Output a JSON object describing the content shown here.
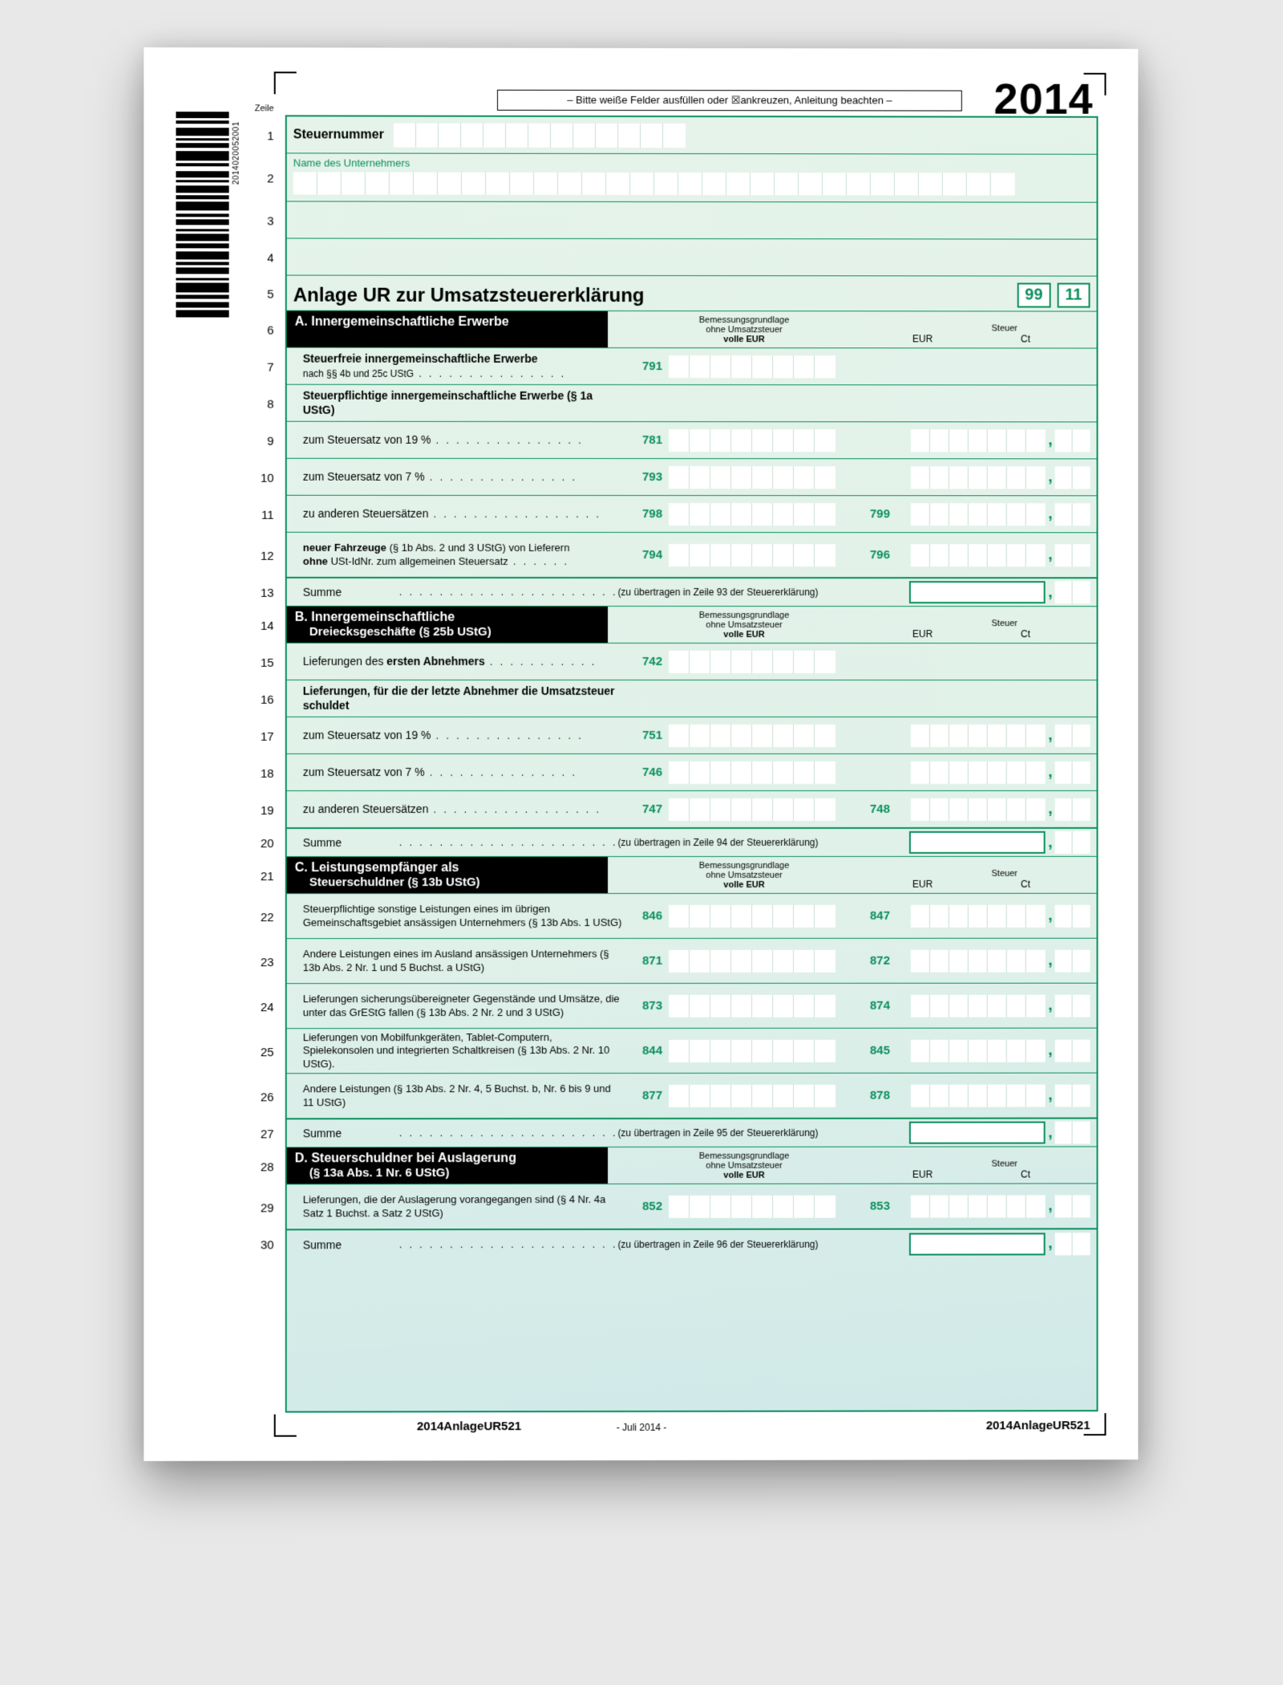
{
  "instruction_bar": "– Bitte weiße Felder ausfüllen oder ☒ankreuzen, Anleitung beachten –",
  "year": "2014",
  "barcode_label": "2014020052001",
  "zeile_header": "Zeile",
  "line_numbers": [
    "1",
    "2",
    "3",
    "4",
    "5",
    "6",
    "7",
    "8",
    "9",
    "10",
    "11",
    "12",
    "13",
    "14",
    "15",
    "16",
    "17",
    "18",
    "19",
    "20",
    "21",
    "22",
    "23",
    "24",
    "25",
    "26",
    "27",
    "28",
    "29",
    "30"
  ],
  "steuernummer_label": "Steuernummer",
  "name_label": "Name des Unternehmers",
  "title": "Anlage  UR  zur  Umsatzsteuererklärung",
  "title_box_a": "99",
  "title_box_b": "11",
  "colhead_bgr1": "Bemessungsgrundlage",
  "colhead_bgr2": "ohne Umsatzsteuer",
  "colhead_bgr3": "volle EUR",
  "colhead_tax": "Steuer",
  "colhead_eur": "EUR",
  "colhead_ct": "Ct",
  "section_a": "A. Innergemeinschaftliche Erwerbe",
  "a_l7_desc": "Steuerfreie innergemeinschaftliche Erwerbe",
  "a_l7_sub": "nach §§ 4b und 25c UStG",
  "a_l7_code": "791",
  "a_l8_desc": "Steuerpflichtige innergemeinschaftliche Erwerbe (§ 1a UStG)",
  "a_l9_desc": "zum Steuersatz von 19 %",
  "a_l9_code": "781",
  "a_l10_desc": "zum Steuersatz von   7 %",
  "a_l10_code": "793",
  "a_l11_desc": "zu anderen Steuersätzen",
  "a_l11_code": "798",
  "a_l11_code2": "799",
  "a_l12_desc": "neuer Fahrzeuge (§ 1b Abs. 2 und 3 UStG) von Lieferern ohne USt-IdNr. zum allgemeinen Steuersatz",
  "a_l12_bold1": "neuer Fahrzeuge",
  "a_l12_bold2": "ohne",
  "a_l12_code": "794",
  "a_l12_code2": "796",
  "a_sum": "Summe",
  "a_transfer": "(zu übertragen in Zeile 93 der Steuererklärung)",
  "section_b": "B.  Innergemeinschaftliche",
  "section_b2": "Dreiecksgeschäfte (§ 25b UStG)",
  "b_l15_desc": "Lieferungen des ersten Abnehmers",
  "b_l15_bold": "ersten Abnehmers",
  "b_l15_code": "742",
  "b_l16_desc": "Lieferungen, für die der letzte Abnehmer die Umsatzsteuer schuldet",
  "b_l17_desc": "zum Steuersatz von 19 %",
  "b_l17_code": "751",
  "b_l18_desc": "zum Steuersatz von   7 %",
  "b_l18_code": "746",
  "b_l19_desc": "zu anderen Steuersätzen",
  "b_l19_code": "747",
  "b_l19_code2": "748",
  "b_transfer": "(zu übertragen in Zeile 94 der Steuererklärung)",
  "section_c": "C.  Leistungsempfänger als",
  "section_c2": "Steuerschuldner (§ 13b UStG)",
  "c_l22_desc": "Steuerpflichtige sonstige Leistungen eines im übrigen Gemeinschaftsgebiet ansässigen Unternehmers (§ 13b Abs. 1 UStG)",
  "c_l22_code": "846",
  "c_l22_code2": "847",
  "c_l23_desc": "Andere Leistungen eines im Ausland ansässigen Unternehmers (§ 13b Abs. 2 Nr. 1 und 5 Buchst. a UStG)",
  "c_l23_code": "871",
  "c_l23_code2": "872",
  "c_l24_desc": "Lieferungen sicherungsübereigneter Gegenstände und Umsätze, die unter das GrEStG fallen (§ 13b Abs. 2 Nr. 2 und 3 UStG)",
  "c_l24_code": "873",
  "c_l24_code2": "874",
  "c_l25_desc": "Lieferungen von Mobilfunkgeräten, Tablet-Computern, Spielekonsolen und integrierten Schaltkreisen (§ 13b Abs. 2 Nr. 10 UStG).",
  "c_l25_code": "844",
  "c_l25_code2": "845",
  "c_l26_desc": "Andere Leistungen (§ 13b Abs. 2 Nr. 4, 5 Buchst. b, Nr. 6 bis 9 und 11 UStG)",
  "c_l26_code": "877",
  "c_l26_code2": "878",
  "c_transfer": "(zu übertragen in Zeile 95 der Steuererklärung)",
  "section_d": "D.  Steuerschuldner bei Auslagerung",
  "section_d2": "(§ 13a Abs. 1 Nr. 6 UStG)",
  "d_l29_desc": "Lieferungen, die der Auslagerung vorangegangen sind (§ 4 Nr. 4a Satz 1 Buchst. a Satz 2 UStG)",
  "d_l29_code": "852",
  "d_l29_code2": "853",
  "d_transfer": "(zu übertragen in Zeile 96 der Steuererklärung)",
  "footer_id": "2014AnlageUR521",
  "footer_date": "- Juli 2014 -",
  "colors": {
    "green": "#0b8f5d",
    "bg": "#e5f3ea"
  }
}
